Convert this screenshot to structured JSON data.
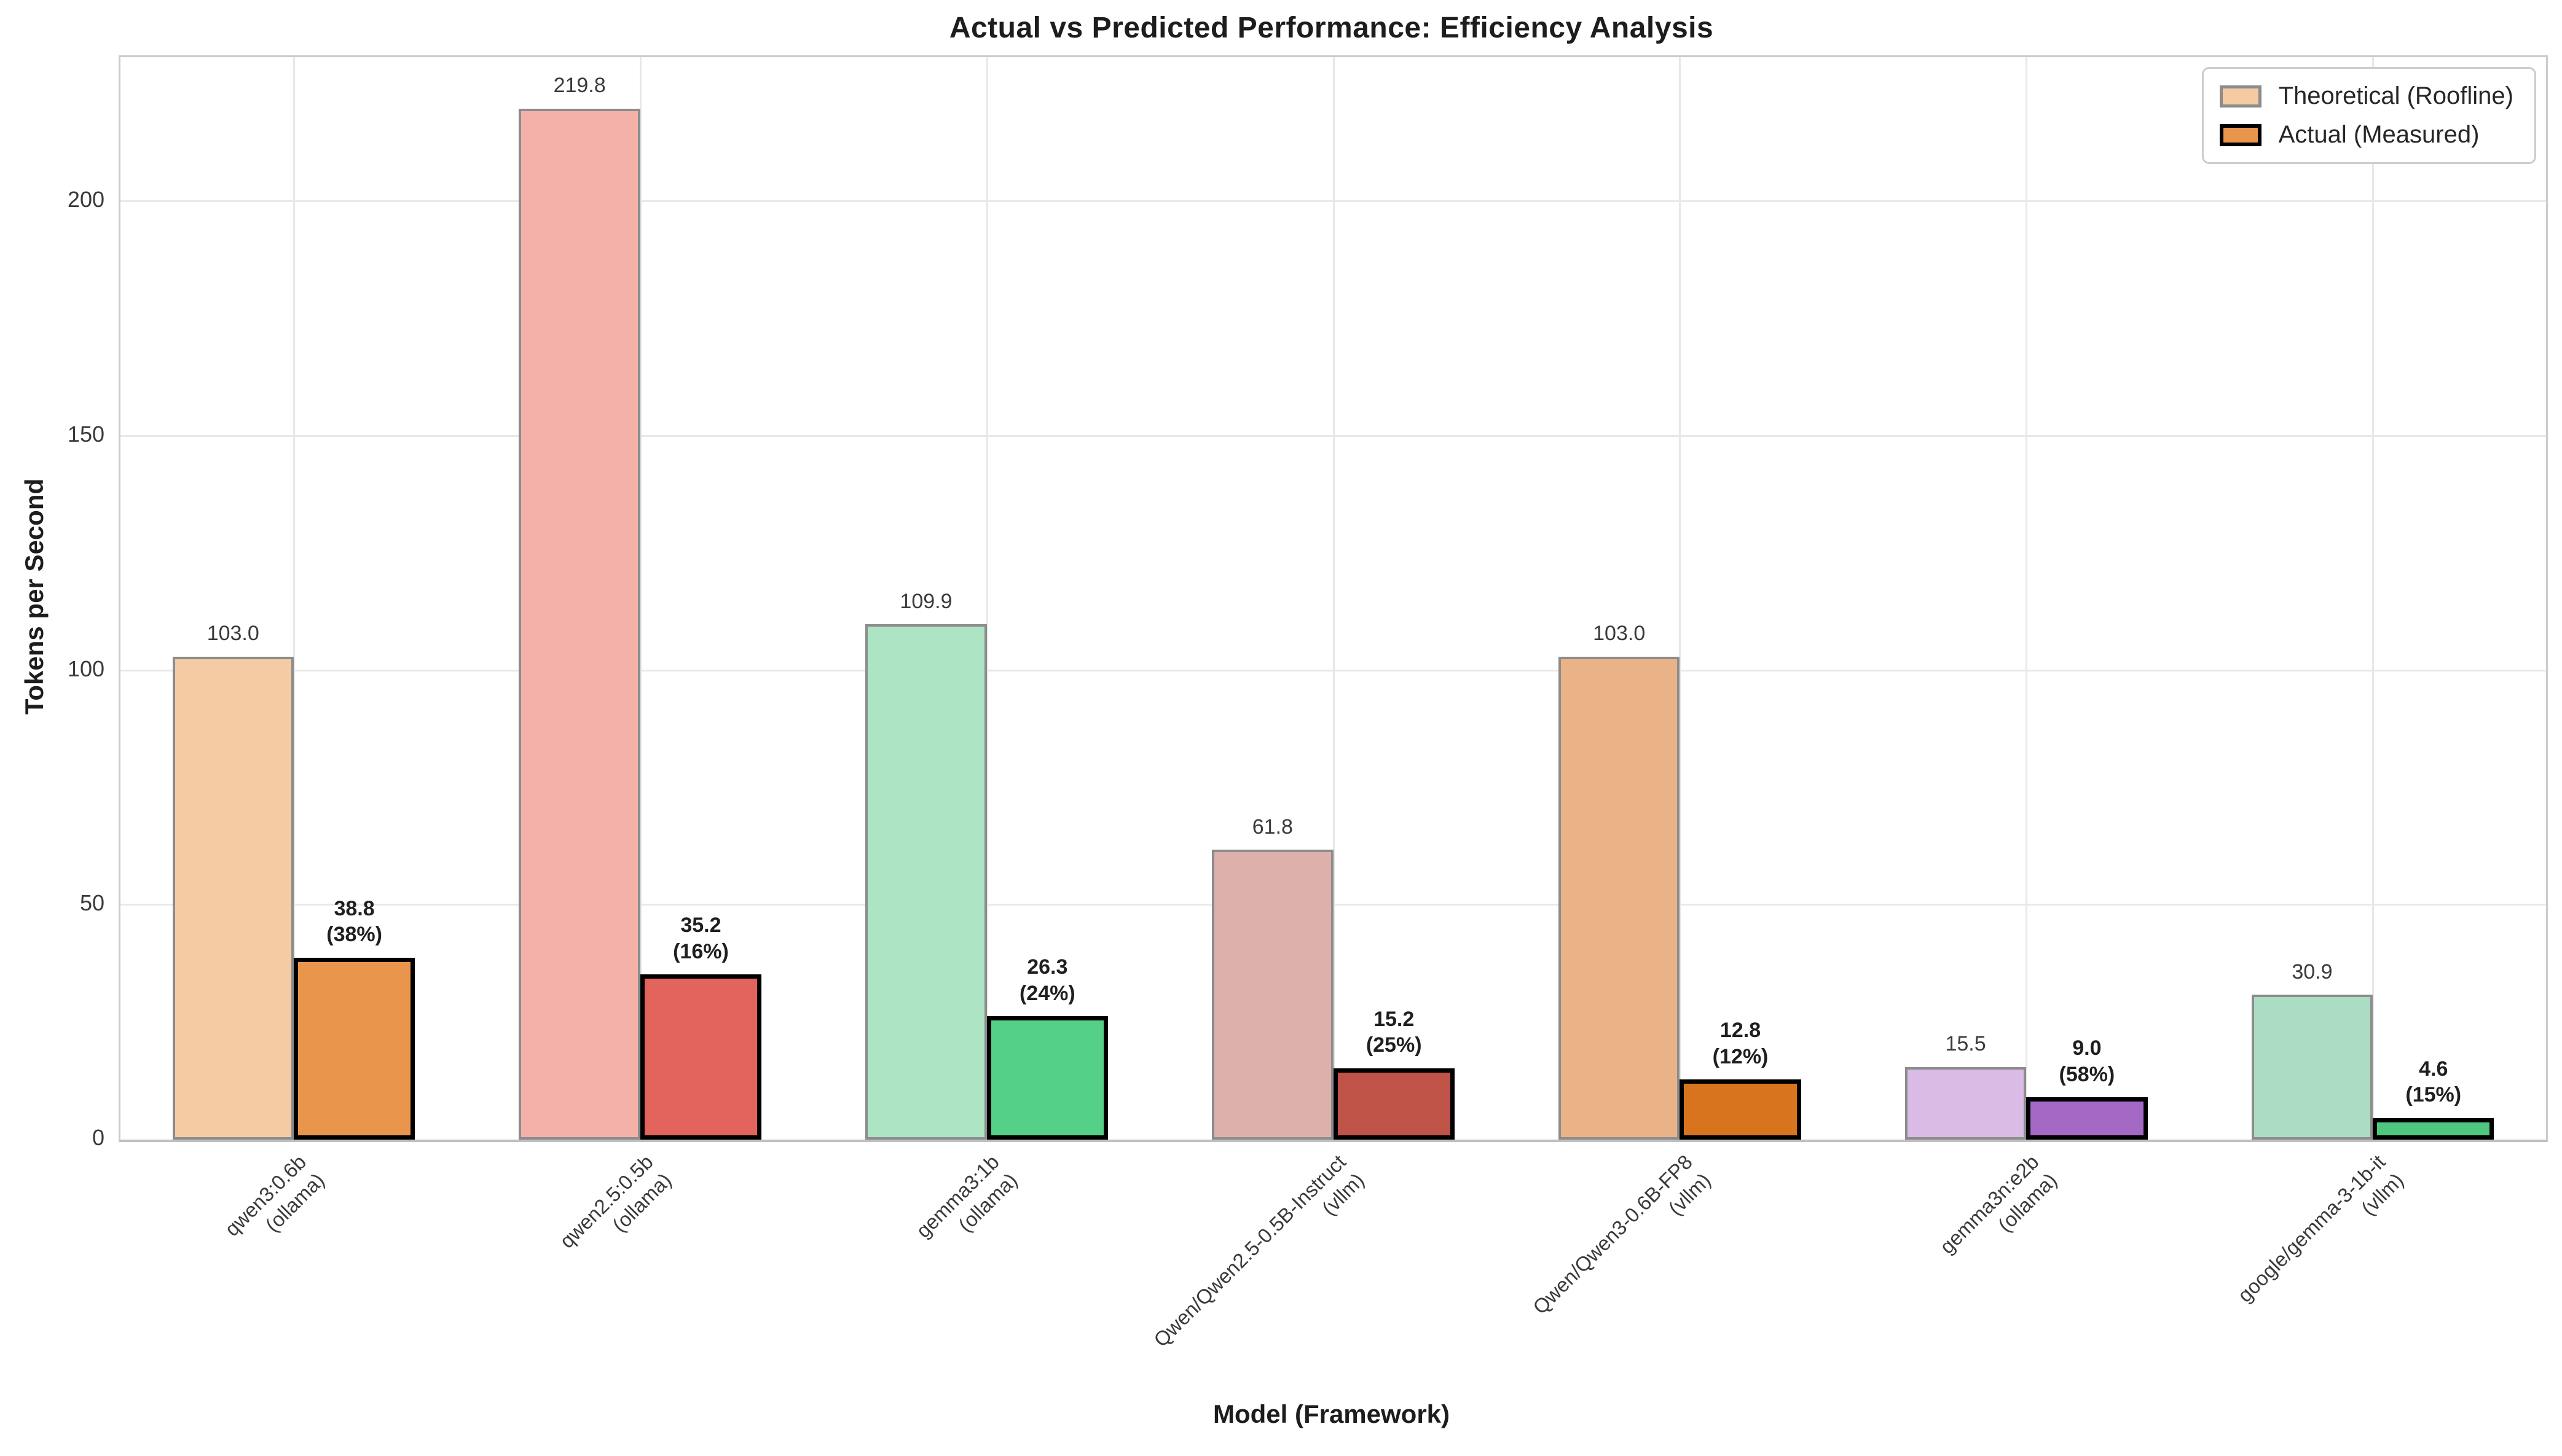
{
  "chart_data": {
    "type": "bar",
    "title": "Actual vs Predicted Performance: Efficiency Analysis",
    "xlabel": "Model (Framework)",
    "ylabel": "Tokens per Second",
    "ylim": [
      0,
      230.8
    ],
    "yticks": [
      0,
      50,
      100,
      150,
      200
    ],
    "grid": "light gray horizontal gridlines at yticks and vertical gridlines at category centers",
    "legend": {
      "position": "upper right",
      "entries": [
        {
          "label": "Theoretical (Roofline)",
          "swatch_color": "#f5cba3",
          "swatch_edge": "#8c8c8c"
        },
        {
          "label": "Actual (Measured)",
          "swatch_color": "#e9954b",
          "swatch_edge": "#000000"
        }
      ]
    },
    "categories": [
      "qwen3:0.6b\n(ollama)",
      "qwen2.5:0.5b\n(ollama)",
      "gemma3:1b\n(ollama)",
      "Qwen/Qwen2.5-0.5B-Instruct\n(vllm)",
      "Qwen/Qwen3-0.6B-FP8\n(vllm)",
      "gemma3n:e2b\n(ollama)",
      "google/gemma-3-1b-it\n(vllm)"
    ],
    "series": [
      {
        "name": "Theoretical (Roofline)",
        "values": [
          103.0,
          219.8,
          109.9,
          61.8,
          103.0,
          15.5,
          30.9
        ]
      },
      {
        "name": "Actual (Measured)",
        "values": [
          38.8,
          35.2,
          26.3,
          15.2,
          12.8,
          9.0,
          4.6
        ]
      }
    ],
    "efficiency_percent": [
      38,
      16,
      24,
      25,
      12,
      58,
      15
    ],
    "colors": {
      "theoretical_edge": "#8c8c8c",
      "actual_edge": "#000000",
      "grid": "#e8e8e8",
      "frame": "#cccccc"
    },
    "groups": [
      {
        "model": "qwen3:0.6b",
        "framework": "(ollama)",
        "theoretical": 103.0,
        "theo_label": "103.0",
        "actual": 38.8,
        "actual_label_line1": "38.8",
        "actual_label_line2": "(38%)",
        "theo_color": "#f5cba3",
        "actual_color": "#e9954b"
      },
      {
        "model": "qwen2.5:0.5b",
        "framework": "(ollama)",
        "theoretical": 219.8,
        "theo_label": "219.8",
        "actual": 35.2,
        "actual_label_line1": "35.2",
        "actual_label_line2": "(16%)",
        "theo_color": "#f3b1aa",
        "actual_color": "#e3645c"
      },
      {
        "model": "gemma3:1b",
        "framework": "(ollama)",
        "theoretical": 109.9,
        "theo_label": "109.9",
        "actual": 26.3,
        "actual_label_line1": "26.3",
        "actual_label_line2": "(24%)",
        "theo_color": "#ace4c4",
        "actual_color": "#55d089"
      },
      {
        "model": "Qwen/Qwen2.5-0.5B-Instruct",
        "framework": "(vllm)",
        "theoretical": 61.8,
        "theo_label": "61.8",
        "actual": 15.2,
        "actual_label_line1": "15.2",
        "actual_label_line2": "(25%)",
        "theo_color": "#deb0ab",
        "actual_color": "#c05348"
      },
      {
        "model": "Qwen/Qwen3-0.6B-FP8",
        "framework": "(vllm)",
        "theoretical": 103.0,
        "theo_label": "103.0",
        "actual": 12.8,
        "actual_label_line1": "12.8",
        "actual_label_line2": "(12%)",
        "theo_color": "#eab287",
        "actual_color": "#d8741e"
      },
      {
        "model": "gemma3n:e2b",
        "framework": "(ollama)",
        "theoretical": 15.5,
        "theo_label": "15.5",
        "actual": 9.0,
        "actual_label_line1": "9.0",
        "actual_label_line2": "(58%)",
        "theo_color": "#d9bbe5",
        "actual_color": "#a369c4"
      },
      {
        "model": "google/gemma-3-1b-it",
        "framework": "(vllm)",
        "theoretical": 30.9,
        "theo_label": "30.9",
        "actual": 4.6,
        "actual_label_line1": "4.6",
        "actual_label_line2": "(15%)",
        "theo_color": "#aaddc2",
        "actual_color": "#4dc87e"
      }
    ]
  }
}
